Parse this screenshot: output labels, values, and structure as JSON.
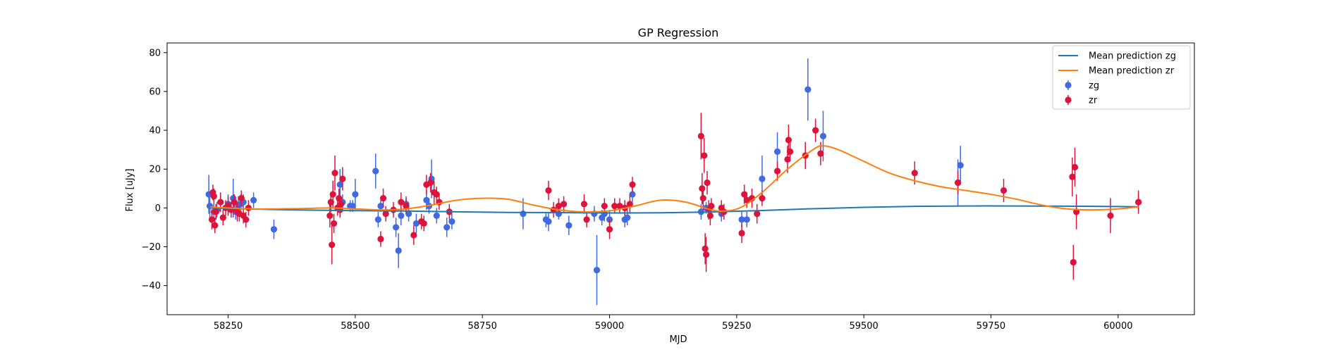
{
  "chart_data": {
    "type": "scatter",
    "title": "GP Regression",
    "xlabel": "MJD",
    "ylabel": "Flux [uJy]",
    "xlim": [
      58130,
      60150
    ],
    "ylim": [
      -55,
      85
    ],
    "xticks": [
      58250,
      58500,
      58750,
      59000,
      59250,
      59500,
      59750,
      60000
    ],
    "yticks": [
      -40,
      -20,
      0,
      20,
      40,
      60,
      80
    ],
    "ytick_labels": [
      "−40",
      "−20",
      "0",
      "20",
      "40",
      "60",
      "80"
    ],
    "grid": false,
    "legend_position": "top-right",
    "legend": [
      {
        "label": "Mean prediction zg",
        "kind": "line",
        "color": "#1f77b4"
      },
      {
        "label": "Mean prediction zr",
        "kind": "line",
        "color": "#ff7f0e"
      },
      {
        "label": "zg",
        "kind": "errorbar",
        "color": "#4169e1"
      },
      {
        "label": "zr",
        "kind": "errorbar",
        "color": "#dc143c"
      }
    ],
    "lines": [
      {
        "name": "Mean prediction zg",
        "color": "#1f77b4",
        "x": [
          58215,
          58300,
          58400,
          58500,
          58600,
          58700,
          58800,
          58900,
          59000,
          59100,
          59200,
          59300,
          59400,
          59500,
          59600,
          59700,
          59800,
          59900,
          60000,
          60040
        ],
        "y": [
          0.0,
          -0.6,
          -1.1,
          -1.4,
          -1.6,
          -2.0,
          -2.3,
          -2.4,
          -2.6,
          -2.5,
          -2.1,
          -1.3,
          -0.4,
          0.3,
          0.8,
          1.0,
          1.0,
          0.9,
          0.7,
          0.6
        ]
      },
      {
        "name": "Mean prediction zr",
        "color": "#ff7f0e",
        "x": [
          58215,
          58300,
          58400,
          58450,
          58500,
          58550,
          58600,
          58650,
          58700,
          58750,
          58800,
          58850,
          58900,
          58950,
          59000,
          59050,
          59100,
          59150,
          59200,
          59230,
          59260,
          59300,
          59350,
          59400,
          59420,
          59450,
          59500,
          59550,
          59600,
          59650,
          59700,
          59750,
          59800,
          59850,
          59900,
          59950,
          60000,
          60040
        ],
        "y": [
          0.5,
          -0.5,
          -0.3,
          0.0,
          -0.5,
          -1.0,
          -0.5,
          1.5,
          4.0,
          5.0,
          4.5,
          1.5,
          -1.0,
          -2.0,
          -1.5,
          1.0,
          4.0,
          3.0,
          -1.0,
          -1.5,
          0.5,
          8.0,
          20.0,
          30.0,
          32.0,
          30.0,
          24.0,
          18.0,
          14.0,
          11.0,
          9.0,
          7.0,
          4.5,
          1.5,
          -0.5,
          -1.0,
          -0.5,
          0.5
        ]
      }
    ],
    "series": [
      {
        "name": "zg",
        "color": "#4169e1",
        "x": [
          58212,
          58214,
          58222,
          58228,
          58250,
          58260,
          58265,
          58270,
          58275,
          58280,
          58300,
          58340,
          58470,
          58475,
          58490,
          58495,
          58500,
          58540,
          58545,
          58550,
          58580,
          58585,
          58590,
          58600,
          58605,
          58620,
          58640,
          58645,
          58650,
          58660,
          58680,
          58690,
          58830,
          58875,
          58880,
          58900,
          58920,
          58970,
          58975,
          58985,
          58990,
          59000,
          59030,
          59035,
          59045,
          59180,
          59190,
          59220,
          59260,
          59270,
          59300,
          59330,
          59390,
          59420,
          59685,
          59690,
          60040
        ],
        "y": [
          7,
          1,
          -2,
          -1,
          2,
          5,
          -2,
          1,
          2,
          3,
          4,
          -11,
          12,
          3,
          1,
          1,
          7,
          19,
          -6,
          1,
          -10,
          -22,
          -4,
          2,
          -3,
          -8,
          4,
          1,
          15,
          -4,
          -10,
          -7,
          -3,
          -6,
          -7,
          -3,
          -9,
          -3,
          -32,
          -5,
          -3,
          -6,
          -6,
          -5,
          7,
          -2,
          0,
          -3,
          -6,
          -6,
          15,
          29,
          61,
          37,
          13,
          22,
          3
        ],
        "err": [
          10,
          6,
          4,
          4,
          5,
          10,
          4,
          5,
          5,
          4,
          4,
          5,
          8,
          4,
          3,
          3,
          8,
          9,
          4,
          3,
          5,
          9,
          5,
          4,
          4,
          5,
          5,
          4,
          10,
          4,
          5,
          4,
          8,
          4,
          5,
          3,
          5,
          4,
          18,
          4,
          4,
          5,
          4,
          4,
          4,
          4,
          3,
          4,
          4,
          4,
          12,
          10,
          16,
          13,
          12,
          10,
          4
        ]
      },
      {
        "name": "zr",
        "color": "#dc143c",
        "x": [
          58218,
          58220,
          58222,
          58224,
          58226,
          58235,
          58240,
          58245,
          58250,
          58256,
          58262,
          58268,
          58272,
          58276,
          58280,
          58285,
          58290,
          58450,
          58452,
          58454,
          58456,
          58458,
          58460,
          58465,
          58468,
          58470,
          58472,
          58475,
          58550,
          58555,
          58560,
          58575,
          58590,
          58600,
          58615,
          58630,
          58635,
          58640,
          58648,
          58655,
          58660,
          58665,
          58685,
          58880,
          58890,
          58900,
          58910,
          58950,
          58955,
          58990,
          59000,
          59010,
          59020,
          59030,
          59040,
          59045,
          59180,
          59182,
          59184,
          59186,
          59188,
          59190,
          59192,
          59195,
          59198,
          59200,
          59220,
          59225,
          59260,
          59265,
          59270,
          59280,
          59290,
          59300,
          59330,
          59350,
          59352,
          59355,
          59385,
          59405,
          59415,
          59600,
          59685,
          59775,
          59910,
          59912,
          59915,
          59918,
          59985,
          60040
        ],
        "y": [
          -6,
          8,
          6,
          -9,
          -2,
          3,
          -5,
          0,
          1,
          -1,
          3,
          -2,
          -3,
          5,
          -4,
          -6,
          0,
          -4,
          3,
          -19,
          7,
          -8,
          18,
          0,
          5,
          -1,
          2,
          15,
          -16,
          5,
          -3,
          -1,
          3,
          1,
          -14,
          -7,
          -8,
          12,
          13,
          8,
          7,
          3,
          -2,
          9,
          -1,
          1,
          2,
          2,
          -6,
          1,
          -11,
          1,
          1,
          0,
          2,
          12,
          37,
          10,
          5,
          27,
          -21,
          -24,
          13,
          -1,
          -4,
          1,
          0,
          -2,
          -13,
          7,
          4,
          5,
          -3,
          5,
          19,
          25,
          35,
          29,
          27,
          40,
          28,
          18,
          13,
          9,
          16,
          -28,
          21,
          -2,
          -4,
          3
        ],
        "err": [
          5,
          4,
          4,
          4,
          4,
          5,
          4,
          4,
          5,
          4,
          4,
          5,
          4,
          4,
          4,
          4,
          4,
          6,
          5,
          10,
          7,
          5,
          9,
          4,
          5,
          4,
          4,
          6,
          4,
          5,
          4,
          4,
          5,
          4,
          5,
          4,
          4,
          5,
          5,
          6,
          4,
          4,
          4,
          5,
          4,
          4,
          4,
          5,
          4,
          4,
          5,
          4,
          4,
          4,
          5,
          4,
          12,
          8,
          6,
          9,
          8,
          9,
          6,
          5,
          5,
          4,
          4,
          4,
          5,
          5,
          4,
          5,
          5,
          4,
          5,
          7,
          8,
          5,
          7,
          6,
          6,
          6,
          6,
          6,
          10,
          9,
          10,
          9,
          9,
          6
        ]
      }
    ]
  }
}
